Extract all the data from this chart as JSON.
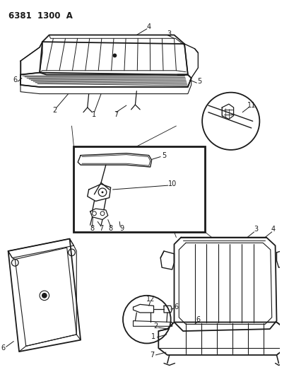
{
  "title": "6381  1300  A",
  "background_color": "#ffffff",
  "line_color": "#1a1a1a",
  "fig_width": 4.1,
  "fig_height": 5.33,
  "dpi": 100,
  "header": "6381  1300  A"
}
